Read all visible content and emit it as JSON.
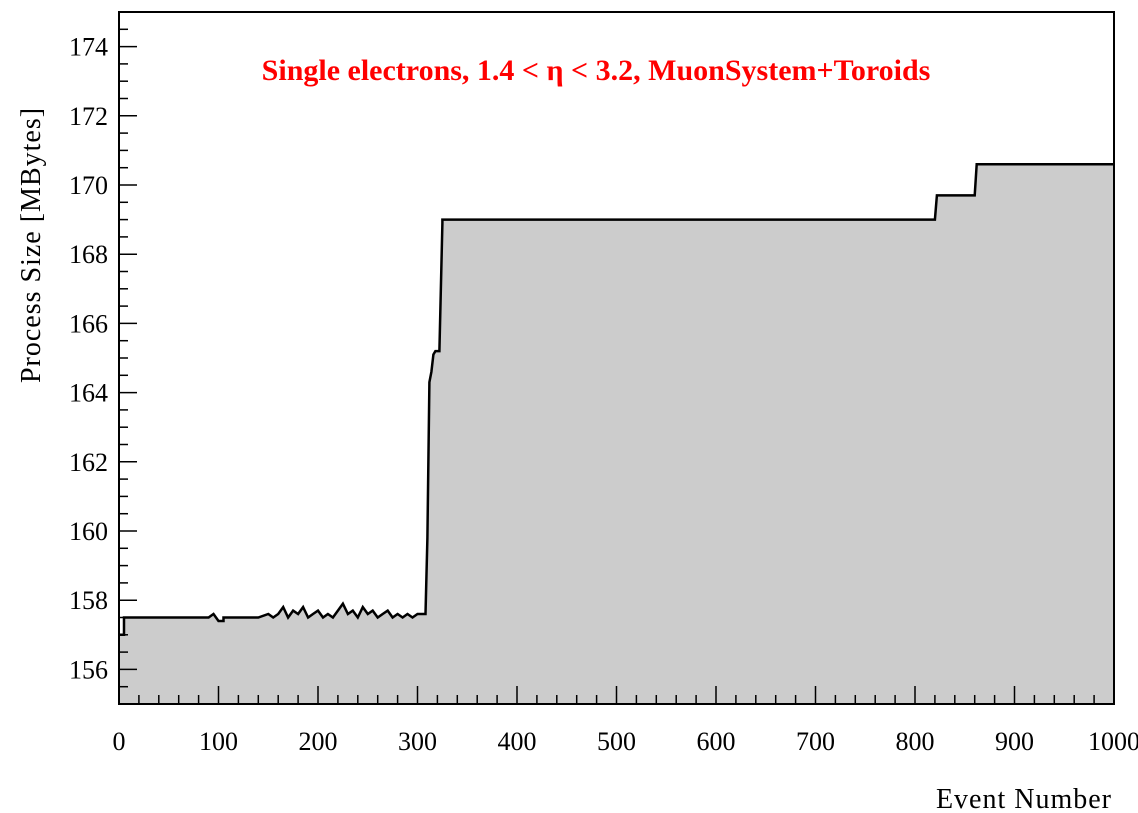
{
  "chart_data": {
    "type": "area",
    "title": "Single electrons,  1.4 < η < 3.2,  MuonSystem+Toroids",
    "xlabel": "Event Number",
    "ylabel": "Process Size   [MBytes]",
    "xlim": [
      0,
      1000
    ],
    "ylim": [
      155,
      175
    ],
    "xticks": [
      0,
      100,
      200,
      300,
      400,
      500,
      600,
      700,
      800,
      900,
      1000
    ],
    "yticks": [
      156,
      158,
      160,
      162,
      164,
      166,
      168,
      170,
      172,
      174
    ],
    "grid": false,
    "fill_color": "#cccccc",
    "line_color": "#000000",
    "title_color": "#ff0000",
    "series": [
      {
        "x": [
          0,
          5,
          5,
          90,
          95,
          95,
          100,
          105,
          105,
          140,
          150,
          155,
          160,
          165,
          170,
          175,
          180,
          185,
          190,
          195,
          200,
          205,
          210,
          215,
          220,
          225,
          230,
          235,
          240,
          245,
          250,
          255,
          260,
          265,
          270,
          275,
          280,
          285,
          290,
          295,
          300,
          308,
          310,
          312,
          314,
          316,
          318,
          320,
          322,
          325,
          325,
          350,
          400,
          500,
          600,
          700,
          800,
          820,
          822,
          850,
          860,
          862,
          870,
          900,
          950,
          1000
        ],
        "y": [
          157.0,
          157.0,
          157.5,
          157.5,
          157.6,
          157.6,
          157.4,
          157.4,
          157.5,
          157.5,
          157.6,
          157.5,
          157.6,
          157.8,
          157.5,
          157.7,
          157.6,
          157.8,
          157.5,
          157.6,
          157.7,
          157.5,
          157.6,
          157.5,
          157.7,
          157.9,
          157.6,
          157.7,
          157.5,
          157.8,
          157.6,
          157.7,
          157.5,
          157.6,
          157.7,
          157.5,
          157.6,
          157.5,
          157.6,
          157.5,
          157.6,
          157.6,
          159.8,
          164.3,
          164.6,
          165.1,
          165.2,
          165.2,
          165.2,
          168.9,
          169.0,
          169.0,
          169.0,
          169.0,
          169.0,
          169.0,
          169.0,
          169.0,
          169.7,
          169.7,
          169.7,
          170.6,
          170.6,
          170.6,
          170.6,
          170.6
        ]
      }
    ]
  }
}
